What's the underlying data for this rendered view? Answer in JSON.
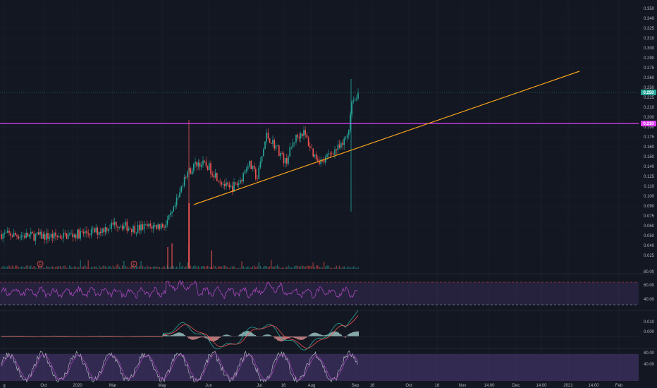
{
  "colors": {
    "background": "#131722",
    "grid": "#1c2030",
    "up": "#26a69a",
    "down": "#ef5350",
    "resistance": "#e040fb",
    "trendline": "#f7a21b",
    "indicator": "#ab47bc",
    "macd_line": "#26a69a",
    "signal_line": "#ef5350"
  },
  "price_axis": {
    "ticks": [
      "0.350",
      "0.340",
      "0.325",
      "0.310",
      "0.300",
      "0.290",
      "0.275",
      "0.260",
      "0.250",
      "0.225",
      "0.210",
      "0.200",
      "0.190",
      "0.175",
      "0.160",
      "0.150",
      "0.140",
      "0.125",
      "0.110",
      "0.100",
      "0.090",
      "0.075",
      "0.060",
      "0.050",
      "0.040",
      "0.025"
    ],
    "last_price_badge": "0.250",
    "level_badge": "0.210"
  },
  "rsi_axis": {
    "ticks": [
      "80.00",
      "60.00",
      "40.00"
    ]
  },
  "macd_axis": {
    "ticks": [
      "0.010",
      "0.000"
    ]
  },
  "stoch_axis": {
    "ticks": [
      "80.00",
      "40.00"
    ]
  },
  "time_axis": {
    "labels": [
      "g",
      "Oct",
      "2020",
      "Mar",
      "May",
      "Jun",
      "Jul",
      "16",
      "Aug",
      "Sep",
      "16",
      "Oct",
      "16",
      "Nov",
      "14:00",
      "Dec",
      "14:00",
      "2021",
      "14:00",
      "Feb"
    ]
  },
  "events": [
    "E",
    "E"
  ],
  "chart_data": {
    "type": "candlestick",
    "timeframe_note": "",
    "price": {
      "dates": [
        "2019-08",
        "2019-10",
        "2020-01",
        "2020-03",
        "2020-05",
        "2020-06",
        "2020-07",
        "2020-07-16",
        "2020-08",
        "2020-09"
      ],
      "approx_close": [
        0.068,
        0.065,
        0.07,
        0.075,
        0.085,
        0.155,
        0.165,
        0.185,
        0.175,
        0.25
      ],
      "ylim": [
        0.02,
        0.355
      ],
      "last_price": 0.25,
      "high": 0.265
    },
    "annotations": [
      {
        "type": "horizontal_line",
        "label": "0.210",
        "value": 0.21,
        "color": "#e040fb"
      },
      {
        "type": "trendline",
        "from": [
          "2020-05-22",
          0.1
        ],
        "to": [
          "2021-01",
          0.27
        ],
        "color": "#f7a21b"
      }
    ],
    "rsi": {
      "levels": [
        70,
        30
      ],
      "ylim": [
        20,
        85
      ],
      "last": 70
    },
    "macd": {
      "ylim": [
        -0.007,
        0.016
      ],
      "last": 0.012
    },
    "stochastic": {
      "band": [
        20,
        80
      ],
      "ylim": [
        20,
        90
      ],
      "last": 78
    }
  }
}
